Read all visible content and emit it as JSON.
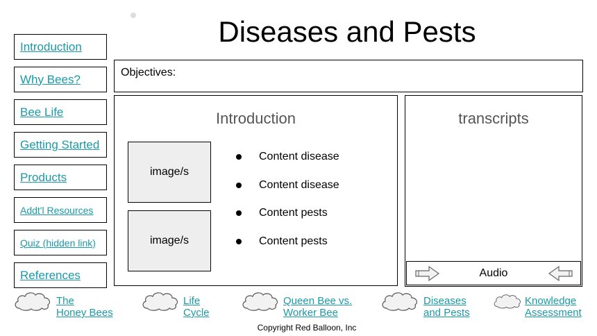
{
  "page": {
    "title": "Diseases and Pests",
    "objectives_label": "Objectives:"
  },
  "nav": {
    "items": [
      {
        "label": "Introduction"
      },
      {
        "label": "Why Bees?"
      },
      {
        "label": "Bee Life"
      },
      {
        "label": "Getting Started"
      },
      {
        "label": "Products"
      },
      {
        "label": "Addt'l Resources"
      },
      {
        "label": "Quiz (hidden link)"
      },
      {
        "label": "References"
      }
    ]
  },
  "main": {
    "heading": "Introduction",
    "images": [
      "image/s",
      "image/s"
    ],
    "bullets": [
      "Content disease",
      "Content disease",
      "Content pests",
      "Content pests"
    ]
  },
  "transcripts": {
    "heading": "transcripts",
    "audio_label": "Audio"
  },
  "bottom_links": [
    {
      "line1": "The",
      "line2": "Honey Bees"
    },
    {
      "line1": "Life",
      "line2": "Cycle"
    },
    {
      "line1": "Queen Bee vs.",
      "line2": "Worker Bee"
    },
    {
      "line1": "Diseases",
      "line2": "and Pests"
    },
    {
      "line1": "Knowledge",
      "line2": "Assessment"
    }
  ],
  "footer": {
    "copyright": "Copyright Red Balloon, Inc"
  },
  "colors": {
    "link": "#1a9aa8",
    "image_placeholder": "#eeeeee",
    "heading_gray": "#555555"
  }
}
